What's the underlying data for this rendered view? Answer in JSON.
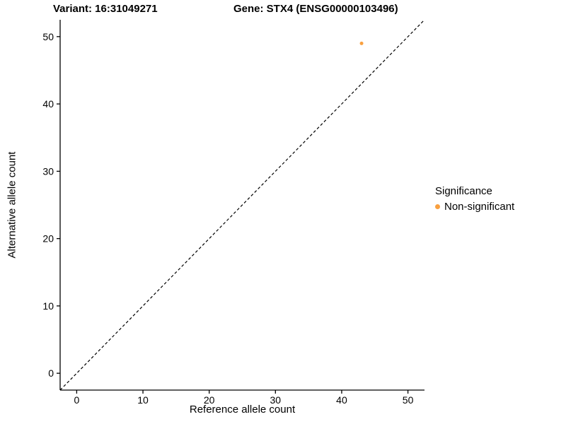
{
  "chart_data": {
    "type": "scatter",
    "title_left": "Variant: 16:31049271",
    "title_right": "Gene: STX4 (ENSG00000103496)",
    "xlabel": "Reference allele count",
    "ylabel": "Alternative allele count",
    "xlim": [
      -2.5,
      52.5
    ],
    "ylim": [
      -2.5,
      52.5
    ],
    "x_ticks": [
      0,
      10,
      20,
      30,
      40,
      50
    ],
    "y_ticks": [
      0,
      10,
      20,
      30,
      40,
      50
    ],
    "grid": false,
    "axis_color": "#000000",
    "points": [
      {
        "x": 43,
        "y": 49,
        "series": "Non-significant"
      }
    ],
    "point_color": "#F9A03F",
    "point_radius": 2.5,
    "reference_line": {
      "type": "identity",
      "style": "dashed",
      "from": -2.5,
      "to": 52.5,
      "color": "#000000"
    },
    "legend": {
      "title": "Significance",
      "position": "right",
      "items": [
        {
          "label": "Non-significant",
          "color": "#F9A03F"
        }
      ]
    }
  }
}
